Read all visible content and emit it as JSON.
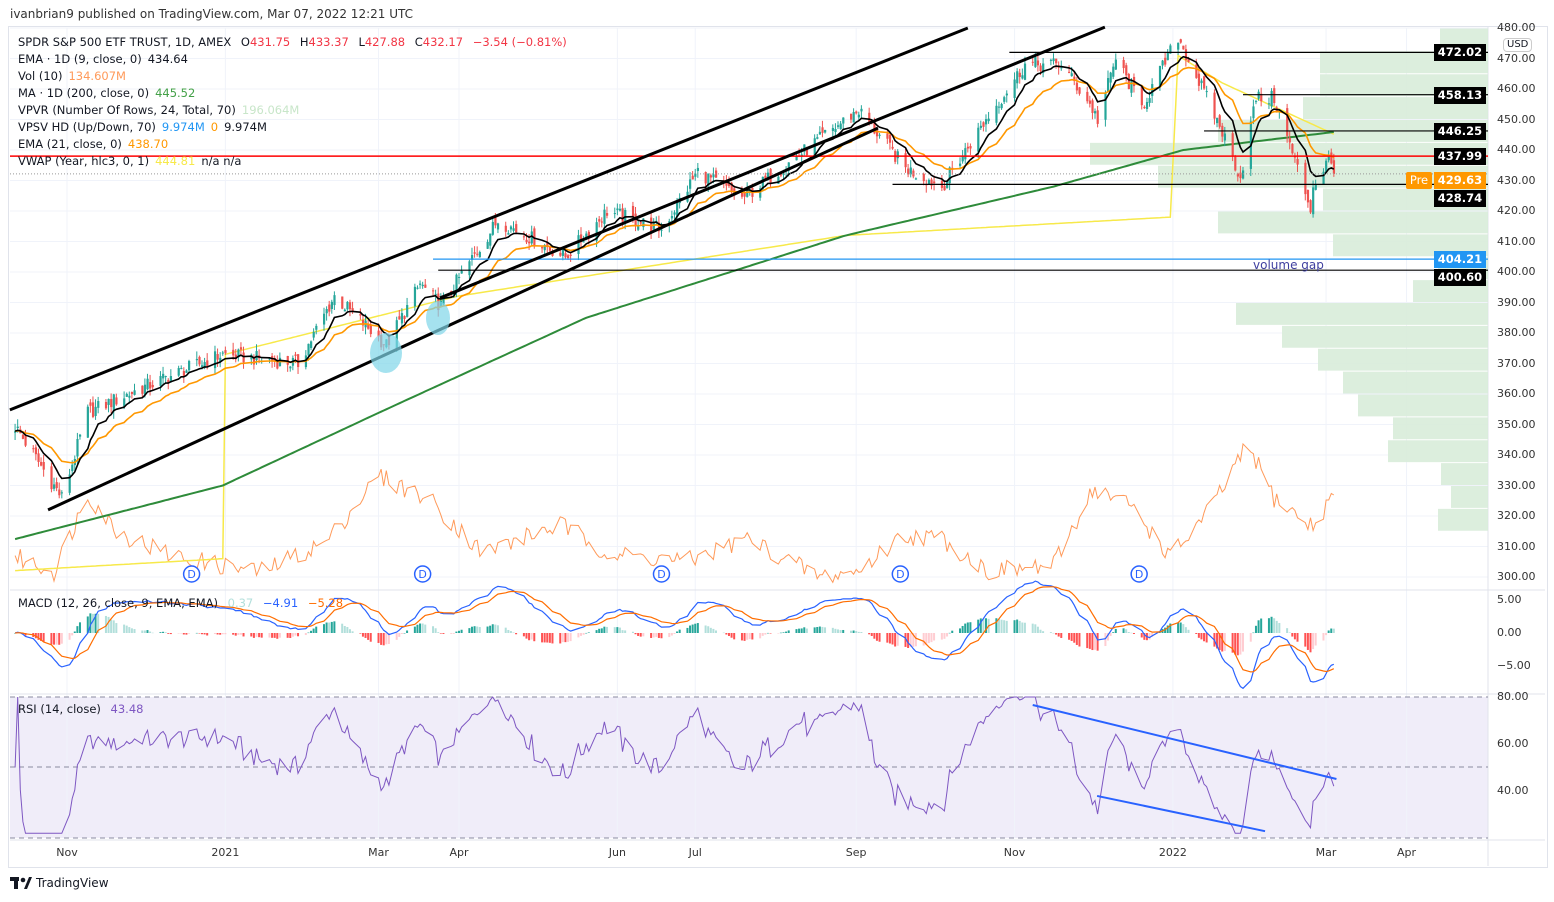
{
  "header": {
    "published": "ivanbrian9 published on TradingView.com, Mar 07, 2022 12:21 UTC"
  },
  "legend": {
    "symbol": "SPDR S&P 500 ETF TRUST, 1D, AMEX",
    "o_label": "O",
    "o": "431.75",
    "h_label": "H",
    "h": "433.37",
    "l_label": "L",
    "l": "427.88",
    "c_label": "C",
    "c": "432.17",
    "change": "−3.54 (−0.81%)",
    "ema9": "EMA · 1D (9, close, 0)",
    "ema9_val": "434.64",
    "vol": "Vol (10)",
    "vol_val": "134.607M",
    "ma200": "MA · 1D (200, close, 0)",
    "ma200_val": "445.52",
    "vpvr": "VPVR (Number Of Rows, 24, Total, 70)",
    "vpvr_val": "196.064M",
    "vpsv": "VPSV HD (Up/Down, 70)",
    "vpsv_up": "9.974M",
    "vpsv_down": "0",
    "vpsv_total": "9.974M",
    "ema21": "EMA (21, close, 0)",
    "ema21_val": "438.70",
    "vwap": "VWAP (Year, hlc3, 0, 1)",
    "vwap_val": "444.81",
    "vwap_na": "n/a  n/a"
  },
  "macd_legend": {
    "label": "MACD (12, 26, close, 9, EMA, EMA)",
    "hist": "0.37",
    "macd": "−4.91",
    "signal": "−5.28"
  },
  "rsi_legend": {
    "label": "RSI (14, close)",
    "value": "43.48"
  },
  "price_axis": {
    "currency": "USD",
    "ticks": [
      "480.00",
      "470.00",
      "460.00",
      "450.00",
      "440.00",
      "430.00",
      "420.00",
      "410.00",
      "400.00",
      "390.00",
      "380.00",
      "370.00",
      "360.00",
      "350.00",
      "340.00",
      "330.00",
      "320.00",
      "310.00",
      "300.00"
    ]
  },
  "macd_axis": [
    "5.00",
    "0.00",
    "−5.00"
  ],
  "rsi_axis": [
    "80.00",
    "60.00",
    "40.00"
  ],
  "price_labels": [
    {
      "text": "472.02",
      "price": 472.02,
      "bg": "#000000"
    },
    {
      "text": "458.13",
      "price": 458.13,
      "bg": "#000000"
    },
    {
      "text": "446.25",
      "price": 446.25,
      "bg": "#000000"
    },
    {
      "text": "437.99",
      "price": 437.99,
      "bg": "#000000"
    },
    {
      "text": "429.63",
      "price": 430.3,
      "bg": "#ff9800"
    },
    {
      "text": "428.74",
      "price": 428.74,
      "bg": "#000000"
    },
    {
      "text": "404.21",
      "price": 404.21,
      "bg": "#2196f3"
    },
    {
      "text": "400.60",
      "price": 400.6,
      "bg": "#000000"
    }
  ],
  "pre_label": "Pre",
  "annotation": "volume gap",
  "time_axis": [
    {
      "t": "Nov",
      "d": 0
    },
    {
      "t": "2021",
      "d": 61
    },
    {
      "t": "Mar",
      "d": 120
    },
    {
      "t": "Apr",
      "d": 151
    },
    {
      "t": "Jun",
      "d": 212
    },
    {
      "t": "Jul",
      "d": 242
    },
    {
      "t": "Sep",
      "d": 304
    },
    {
      "t": "Nov",
      "d": 365
    },
    {
      "t": "2022",
      "d": 426
    },
    {
      "t": "Mar",
      "d": 485
    },
    {
      "t": "Apr",
      "d": 516
    }
  ],
  "dividend_marker": "D",
  "footer": {
    "brand": "TradingView"
  },
  "colors": {
    "up": "#26a69a",
    "down": "#ef5350",
    "ema9": "#000000",
    "ema21": "#ff9800",
    "ma200": "#2e8b3a",
    "vwap": "#f7e94a",
    "vol": "#ff9a5a",
    "macd": "#2962ff",
    "signal": "#ff6d00",
    "rsi": "#7e57c2",
    "vp": "#d8ecd9"
  },
  "chart_data": {
    "type": "candlestick",
    "symbol": "SPY",
    "interval": "1D",
    "x_unit": "days since 2020-11-01",
    "close_keypoints": [
      [
        -22,
        352
      ],
      [
        -2,
        326
      ],
      [
        8,
        354
      ],
      [
        29,
        362
      ],
      [
        60,
        373
      ],
      [
        89,
        370
      ],
      [
        103,
        392
      ],
      [
        123,
        376
      ],
      [
        136,
        396
      ],
      [
        144,
        389
      ],
      [
        166,
        417
      ],
      [
        192,
        405
      ],
      [
        208,
        420
      ],
      [
        229,
        414
      ],
      [
        243,
        433
      ],
      [
        260,
        424
      ],
      [
        303,
        452
      ],
      [
        305,
        453
      ],
      [
        323,
        434
      ],
      [
        337,
        428
      ],
      [
        354,
        450
      ],
      [
        369,
        468
      ],
      [
        383,
        468
      ],
      [
        394,
        455
      ],
      [
        397,
        450
      ],
      [
        404,
        470
      ],
      [
        414,
        454
      ],
      [
        428,
        477
      ],
      [
        445,
        446
      ],
      [
        452,
        431
      ],
      [
        458,
        457
      ],
      [
        465,
        457
      ],
      [
        479,
        421
      ],
      [
        480,
        428
      ],
      [
        486,
        437
      ],
      [
        489,
        432
      ]
    ],
    "ma200_keypoints": [
      [
        -22,
        312
      ],
      [
        60,
        330
      ],
      [
        123,
        355
      ],
      [
        200,
        385
      ],
      [
        300,
        412
      ],
      [
        380,
        428
      ],
      [
        430,
        440
      ],
      [
        489,
        446
      ]
    ],
    "vwap_keypoints": [
      [
        -22,
        302
      ],
      [
        60,
        306
      ],
      [
        61,
        373
      ],
      [
        150,
        392
      ],
      [
        300,
        412
      ],
      [
        425,
        418
      ],
      [
        426,
        472
      ],
      [
        445,
        462
      ],
      [
        489,
        444.8
      ]
    ],
    "volume_keypoints_M": [
      [
        -22,
        60
      ],
      [
        -5,
        45
      ],
      [
        8,
        115
      ],
      [
        20,
        80
      ],
      [
        40,
        60
      ],
      [
        60,
        50
      ],
      [
        75,
        45
      ],
      [
        100,
        72
      ],
      [
        120,
        132
      ],
      [
        140,
        110
      ],
      [
        160,
        62
      ],
      [
        190,
        88
      ],
      [
        210,
        60
      ],
      [
        240,
        55
      ],
      [
        262,
        75
      ],
      [
        290,
        40
      ],
      [
        305,
        45
      ],
      [
        322,
        78
      ],
      [
        337,
        75
      ],
      [
        355,
        45
      ],
      [
        380,
        50
      ],
      [
        395,
        120
      ],
      [
        410,
        105
      ],
      [
        425,
        58
      ],
      [
        440,
        100
      ],
      [
        455,
        160
      ],
      [
        465,
        112
      ],
      [
        480,
        85
      ],
      [
        490,
        125
      ]
    ],
    "dividends_days": [
      48,
      137,
      229,
      321,
      413
    ],
    "h_levels": [
      {
        "price": 437.99,
        "from": -22,
        "color": "#ff0000"
      },
      {
        "price": 428.74,
        "from": 318,
        "color": "#000000"
      },
      {
        "price": 472.02,
        "from": 363,
        "color": "#000000"
      },
      {
        "price": 458.13,
        "from": 453,
        "color": "#000000"
      },
      {
        "price": 446.25,
        "from": 438,
        "color": "#000000"
      },
      {
        "price": 404.21,
        "from": 141,
        "color": "#2196f3"
      },
      {
        "price": 400.6,
        "from": 143,
        "color": "#000000"
      }
    ],
    "trendlines": [
      [
        [
          -22,
          354.8
        ],
        [
          347,
          480
        ]
      ],
      [
        [
          -7.3,
          322
        ],
        [
          312.4,
          447.2
        ]
      ],
      [
        [
          143.7,
          391.5
        ],
        [
          399.8,
          480.3
        ]
      ]
    ],
    "rsi_trendlines": [
      [
        [
          372,
          76.6
        ],
        [
          489,
          45.1
        ]
      ],
      [
        [
          396.8,
          37.9
        ],
        [
          461.5,
          22.9
        ]
      ]
    ],
    "volume_profile_rows": [
      [
        472.5,
        480,
        48
      ],
      [
        465,
        472.5,
        168
      ],
      [
        457.5,
        465,
        168
      ],
      [
        450,
        457.5,
        185
      ],
      [
        442.5,
        450,
        270
      ],
      [
        435,
        442.5,
        398
      ],
      [
        427.5,
        435,
        330
      ],
      [
        420,
        427.5,
        165
      ],
      [
        412.5,
        420,
        270
      ],
      [
        405,
        412.5,
        155
      ],
      [
        397.5,
        405,
        50
      ],
      [
        390,
        397.5,
        75
      ],
      [
        382.5,
        390,
        252
      ],
      [
        375,
        382.5,
        206
      ],
      [
        367.5,
        375,
        170
      ],
      [
        360,
        367.5,
        145
      ],
      [
        352.5,
        360,
        130
      ],
      [
        345,
        352.5,
        95
      ],
      [
        337.5,
        345,
        100
      ],
      [
        330,
        337.5,
        47
      ],
      [
        322.5,
        330,
        37
      ],
      [
        315,
        322.5,
        50
      ]
    ],
    "price_range": [
      300,
      480
    ],
    "macd_range": [
      -10,
      6
    ],
    "rsi_range": [
      20,
      80
    ]
  }
}
